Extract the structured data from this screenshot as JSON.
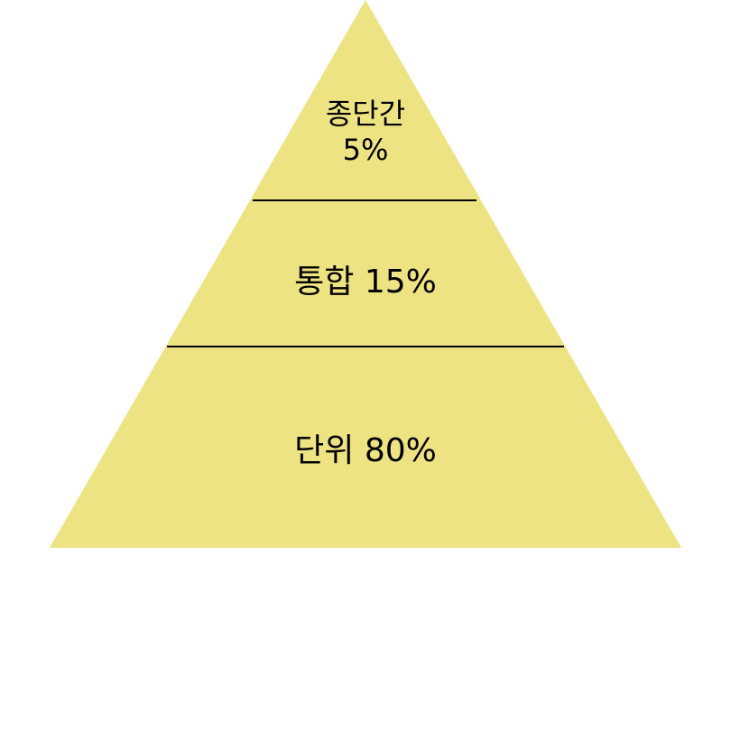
{
  "pyramid": {
    "fill_color": "#EEE382",
    "divider_color": "#000000",
    "tiers": [
      {
        "name": "종단간",
        "value": "5%"
      },
      {
        "name": "통합",
        "value": "15%"
      },
      {
        "name": "단위",
        "value": "80%"
      }
    ]
  },
  "labels": {
    "top_name": "종단간",
    "top_value": "5%",
    "mid": "통합 15%",
    "bottom": "단위 80%"
  }
}
